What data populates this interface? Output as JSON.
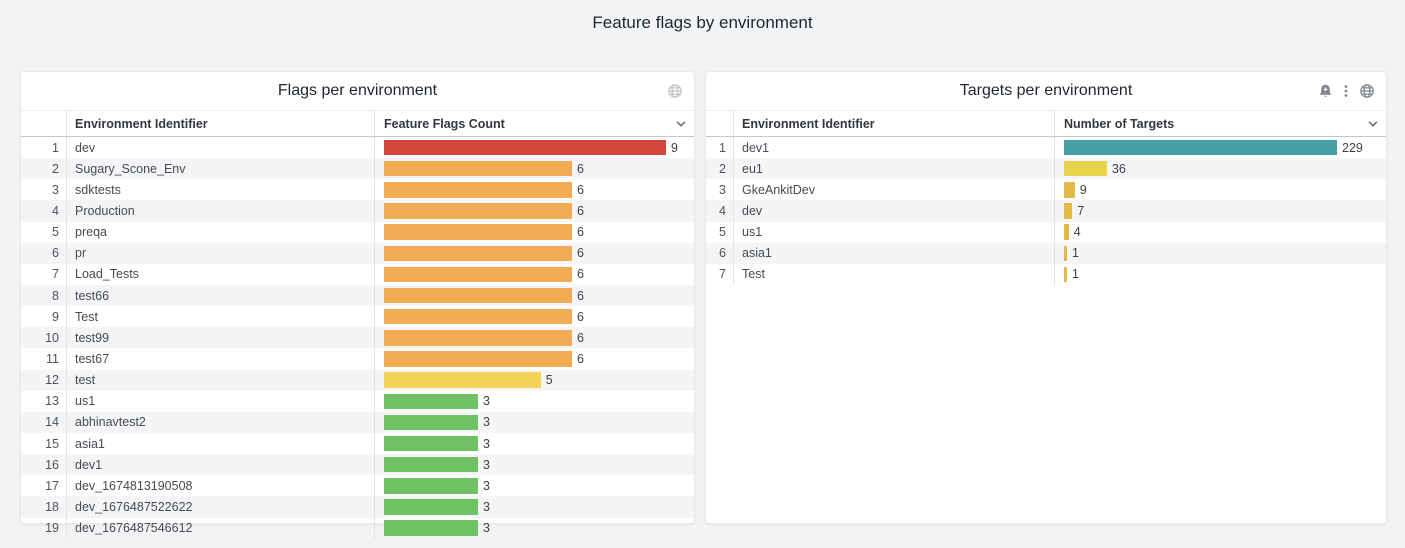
{
  "page": {
    "title": "Feature flags by environment"
  },
  "panels": [
    {
      "title": "Flags per environment",
      "header_icons": [
        "globe"
      ],
      "columns": {
        "name": "Environment Identifier",
        "value": "Feature Flags Count"
      },
      "rows": [
        {
          "name": "dev",
          "value": 9,
          "color": "#d2463c"
        },
        {
          "name": "Sugary_Scone_Env",
          "value": 6,
          "color": "#f0ad53"
        },
        {
          "name": "sdktests",
          "value": 6,
          "color": "#f0ad53"
        },
        {
          "name": "Production",
          "value": 6,
          "color": "#f0ad53"
        },
        {
          "name": "preqa",
          "value": 6,
          "color": "#f0ad53"
        },
        {
          "name": "pr",
          "value": 6,
          "color": "#f0ad53"
        },
        {
          "name": "Load_Tests",
          "value": 6,
          "color": "#f0ad53"
        },
        {
          "name": "test66",
          "value": 6,
          "color": "#f0ad53"
        },
        {
          "name": "Test",
          "value": 6,
          "color": "#f0ad53"
        },
        {
          "name": "test99",
          "value": 6,
          "color": "#f0ad53"
        },
        {
          "name": "test67",
          "value": 6,
          "color": "#f0ad53"
        },
        {
          "name": "test",
          "value": 5,
          "color": "#f3d455"
        },
        {
          "name": "us1",
          "value": 3,
          "color": "#70c163"
        },
        {
          "name": "abhinavtest2",
          "value": 3,
          "color": "#70c163"
        },
        {
          "name": "asia1",
          "value": 3,
          "color": "#70c163"
        },
        {
          "name": "dev1",
          "value": 3,
          "color": "#70c163"
        },
        {
          "name": "dev_1674813190508",
          "value": 3,
          "color": "#70c163"
        },
        {
          "name": "dev_1676487522622",
          "value": 3,
          "color": "#70c163"
        },
        {
          "name": "dev_1676487546612",
          "value": 3,
          "color": "#70c163"
        }
      ]
    },
    {
      "title": "Targets per environment",
      "header_icons": [
        "alert-bell",
        "kebab-menu",
        "globe"
      ],
      "columns": {
        "name": "Environment Identifier",
        "value": "Number of Targets"
      },
      "rows": [
        {
          "name": "dev1",
          "value": 229,
          "color": "#469fa7"
        },
        {
          "name": "eu1",
          "value": 36,
          "color": "#e8d34b"
        },
        {
          "name": "GkeAnkitDev",
          "value": 9,
          "color": "#e3ba47"
        },
        {
          "name": "dev",
          "value": 7,
          "color": "#e3ba47"
        },
        {
          "name": "us1",
          "value": 4,
          "color": "#e3ba47"
        },
        {
          "name": "asia1",
          "value": 1,
          "color": "#e3ba47"
        },
        {
          "name": "Test",
          "value": 1,
          "color": "#e3ba47"
        }
      ]
    }
  ],
  "chart_data": [
    {
      "type": "bar",
      "orientation": "horizontal",
      "title": "Flags per environment",
      "xlabel": "Feature Flags Count",
      "ylabel": "Environment Identifier",
      "xlim": [
        0,
        9
      ],
      "grid": false,
      "legend": false,
      "categories": [
        "dev",
        "Sugary_Scone_Env",
        "sdktests",
        "Production",
        "preqa",
        "pr",
        "Load_Tests",
        "test66",
        "Test",
        "test99",
        "test67",
        "test",
        "us1",
        "abhinavtest2",
        "asia1",
        "dev1",
        "dev_1674813190508",
        "dev_1676487522622",
        "dev_1676487546612"
      ],
      "values": [
        9,
        6,
        6,
        6,
        6,
        6,
        6,
        6,
        6,
        6,
        6,
        5,
        3,
        3,
        3,
        3,
        3,
        3,
        3
      ],
      "bar_colors": [
        "#d2463c",
        "#f0ad53",
        "#f0ad53",
        "#f0ad53",
        "#f0ad53",
        "#f0ad53",
        "#f0ad53",
        "#f0ad53",
        "#f0ad53",
        "#f0ad53",
        "#f0ad53",
        "#f3d455",
        "#70c163",
        "#70c163",
        "#70c163",
        "#70c163",
        "#70c163",
        "#70c163",
        "#70c163"
      ]
    },
    {
      "type": "bar",
      "orientation": "horizontal",
      "title": "Targets per environment",
      "xlabel": "Number of Targets",
      "ylabel": "Environment Identifier",
      "xlim": [
        0,
        229
      ],
      "grid": false,
      "legend": false,
      "categories": [
        "dev1",
        "eu1",
        "GkeAnkitDev",
        "dev",
        "us1",
        "asia1",
        "Test"
      ],
      "values": [
        229,
        36,
        9,
        7,
        4,
        1,
        1
      ],
      "bar_colors": [
        "#469fa7",
        "#e8d34b",
        "#e3ba47",
        "#e3ba47",
        "#e3ba47",
        "#e3ba47",
        "#e3ba47"
      ]
    }
  ]
}
